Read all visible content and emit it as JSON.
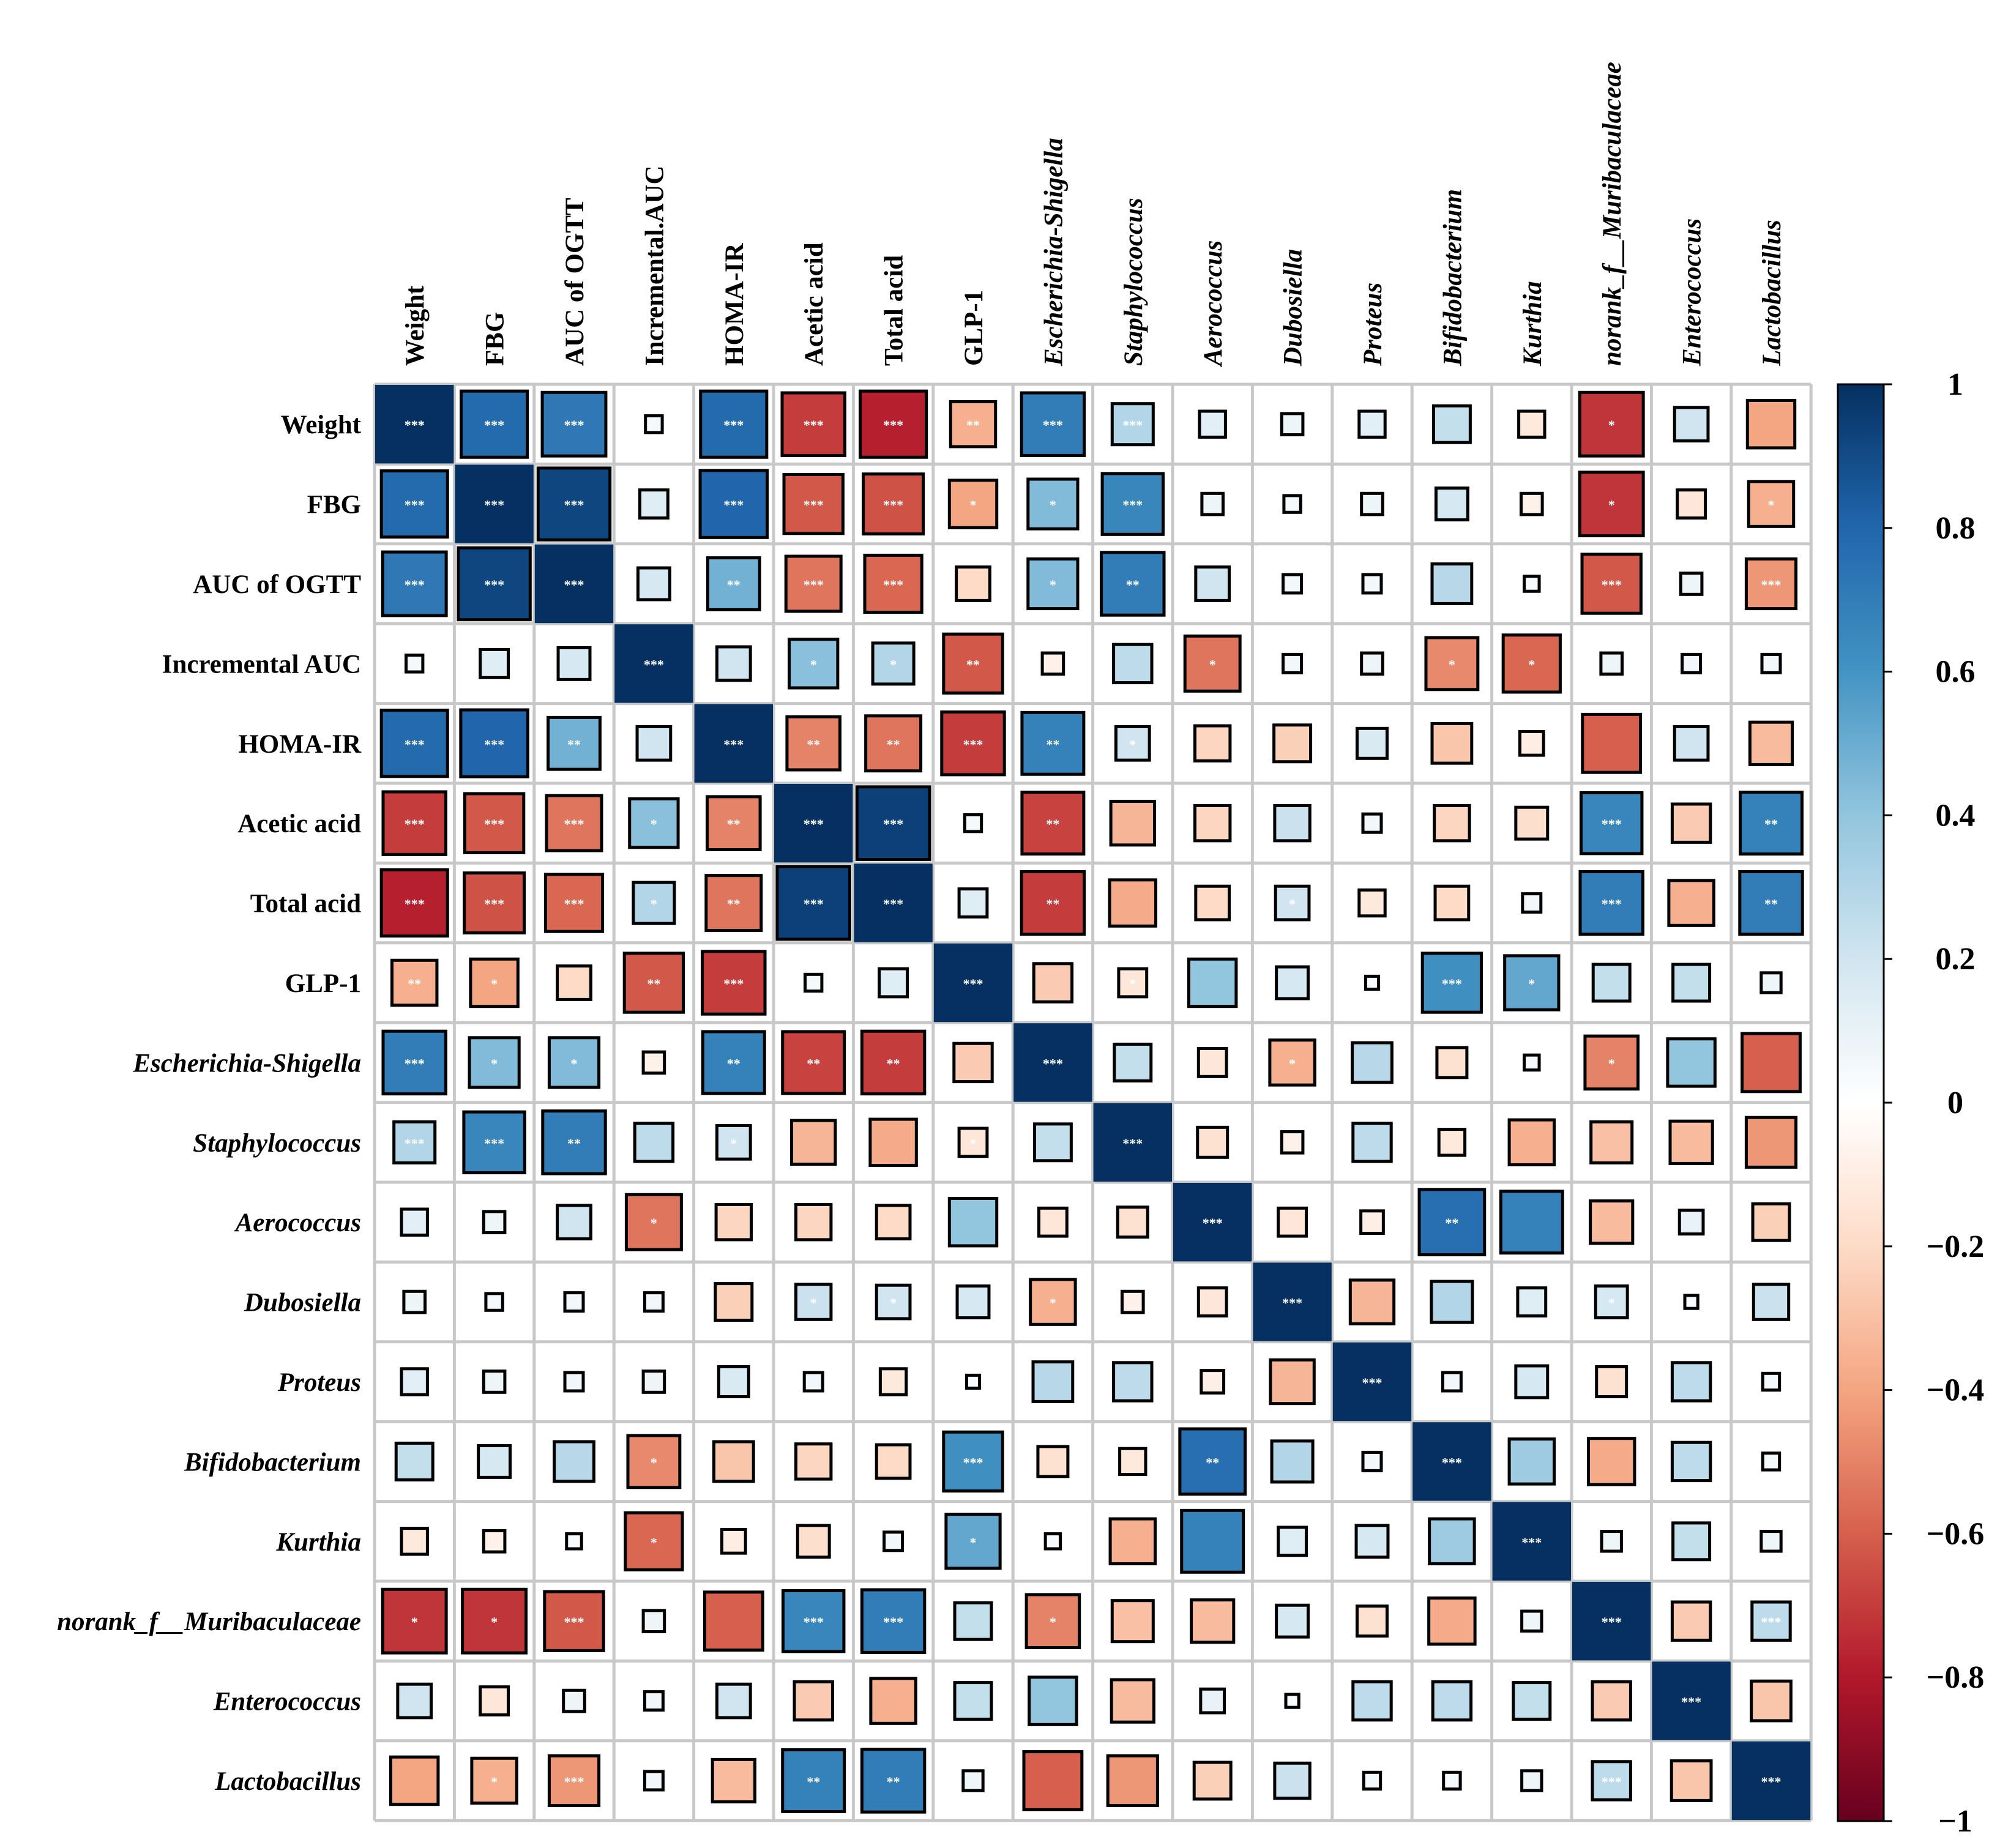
{
  "chart_data": {
    "type": "heatmap",
    "title": "",
    "variables": [
      {
        "label": "Weight",
        "italic": false
      },
      {
        "label": "FBG",
        "italic": false
      },
      {
        "label": "AUC of OGTT",
        "italic": false
      },
      {
        "label": "Incremental AUC",
        "italic": false
      },
      {
        "label": "HOMA-IR",
        "italic": false
      },
      {
        "label": "Acetic acid",
        "italic": false
      },
      {
        "label": "Total acid",
        "italic": false
      },
      {
        "label": "GLP-1",
        "italic": false
      },
      {
        "label": "Escherichia-Shigella",
        "italic": true
      },
      {
        "label": "Staphylococcus",
        "italic": true
      },
      {
        "label": "Aerococcus",
        "italic": true
      },
      {
        "label": "Dubosiella",
        "italic": true
      },
      {
        "label": "Proteus",
        "italic": true
      },
      {
        "label": "Bifidobacterium",
        "italic": true
      },
      {
        "label": "Kurthia",
        "italic": true
      },
      {
        "label": "norank_f__Muribaculaceae",
        "italic": true
      },
      {
        "label": "Enterococcus",
        "italic": true
      },
      {
        "label": "Lactobacillus",
        "italic": true
      }
    ],
    "column_labels": [
      "Weight",
      "FBG",
      "AUC of OGTT",
      "Incremental.AUC",
      "HOMA-IR",
      "Acetic acid",
      "Total acid",
      "GLP-1",
      "Escherichia-Shigella",
      "Staphylococcus",
      "Aerococcus",
      "Dubosiella",
      "Proteus",
      "Bifidobacterium",
      "Kurthia",
      "norank_f__Muribaculaceae",
      "Enterococcus",
      "Lactobacillus"
    ],
    "correlations": [
      [
        1.0,
        0.78,
        0.72,
        0.05,
        0.78,
        -0.7,
        -0.78,
        -0.36,
        0.7,
        0.3,
        0.12,
        0.08,
        0.12,
        0.24,
        -0.12,
        -0.72,
        0.2,
        -0.4
      ],
      [
        0.78,
        1.0,
        0.92,
        0.14,
        0.8,
        -0.62,
        -0.64,
        -0.4,
        0.44,
        0.66,
        0.08,
        0.05,
        0.08,
        0.18,
        -0.08,
        -0.72,
        -0.14,
        -0.36
      ],
      [
        0.72,
        0.92,
        1.0,
        0.18,
        0.48,
        -0.54,
        -0.58,
        -0.2,
        0.44,
        0.7,
        0.2,
        0.06,
        0.06,
        0.28,
        0.04,
        -0.62,
        0.08,
        -0.44
      ],
      [
        0.05,
        0.14,
        0.18,
        1.0,
        0.2,
        0.42,
        0.3,
        -0.62,
        -0.08,
        0.26,
        -0.54,
        0.06,
        0.08,
        -0.48,
        -0.58,
        0.08,
        0.06,
        0.06
      ],
      [
        0.78,
        0.8,
        0.48,
        0.2,
        1.0,
        -0.5,
        -0.54,
        -0.7,
        0.68,
        0.2,
        -0.22,
        -0.24,
        0.16,
        -0.28,
        -0.1,
        -0.6,
        0.2,
        -0.32
      ],
      [
        -0.7,
        -0.62,
        -0.54,
        0.42,
        -0.5,
        1.0,
        0.94,
        0.05,
        -0.68,
        -0.34,
        -0.22,
        0.22,
        0.06,
        -0.22,
        -0.18,
        0.66,
        -0.26,
        0.68
      ],
      [
        -0.78,
        -0.64,
        -0.58,
        0.3,
        -0.54,
        0.94,
        1.0,
        0.14,
        -0.7,
        -0.38,
        -0.2,
        0.2,
        -0.12,
        -0.2,
        0.06,
        0.7,
        -0.36,
        0.7
      ],
      [
        -0.36,
        -0.4,
        -0.2,
        -0.62,
        -0.7,
        0.05,
        0.14,
        1.0,
        -0.26,
        -0.14,
        0.4,
        0.18,
        0.03,
        0.62,
        0.52,
        0.24,
        0.24,
        0.07
      ],
      [
        0.7,
        0.44,
        0.44,
        -0.08,
        0.68,
        -0.68,
        -0.7,
        -0.26,
        1.0,
        0.24,
        -0.14,
        -0.36,
        0.28,
        -0.16,
        0.04,
        -0.5,
        0.4,
        -0.6
      ],
      [
        0.3,
        0.66,
        0.7,
        0.26,
        0.2,
        -0.34,
        -0.38,
        -0.14,
        0.24,
        1.0,
        -0.16,
        -0.08,
        0.26,
        -0.12,
        -0.36,
        -0.3,
        -0.32,
        -0.44
      ],
      [
        0.12,
        0.08,
        0.2,
        -0.54,
        -0.22,
        -0.22,
        -0.2,
        0.4,
        -0.14,
        -0.16,
        1.0,
        -0.14,
        -0.09,
        0.76,
        0.68,
        -0.32,
        0.1,
        -0.24
      ],
      [
        0.08,
        0.05,
        0.06,
        0.06,
        -0.24,
        0.22,
        0.2,
        0.18,
        -0.36,
        -0.08,
        -0.14,
        1.0,
        -0.34,
        0.3,
        0.14,
        0.18,
        0.03,
        0.22
      ],
      [
        0.12,
        0.08,
        0.06,
        0.08,
        0.16,
        0.06,
        -0.12,
        0.03,
        0.28,
        0.26,
        -0.09,
        -0.34,
        1.0,
        0.06,
        0.18,
        -0.16,
        0.26,
        0.05
      ],
      [
        0.24,
        0.18,
        0.28,
        -0.48,
        -0.28,
        -0.22,
        -0.2,
        0.62,
        -0.16,
        -0.12,
        0.76,
        0.3,
        0.06,
        1.0,
        0.36,
        -0.38,
        0.26,
        0.05
      ],
      [
        -0.12,
        -0.08,
        0.04,
        -0.58,
        -0.1,
        -0.18,
        0.06,
        0.52,
        0.04,
        -0.36,
        0.68,
        0.14,
        0.18,
        0.36,
        1.0,
        0.07,
        0.24,
        0.07
      ],
      [
        -0.72,
        -0.72,
        -0.62,
        0.08,
        -0.6,
        0.66,
        0.7,
        0.24,
        -0.5,
        -0.3,
        -0.32,
        0.18,
        -0.16,
        -0.38,
        0.07,
        1.0,
        -0.26,
        0.26
      ],
      [
        0.2,
        -0.14,
        0.08,
        0.06,
        0.2,
        -0.26,
        -0.36,
        0.24,
        0.4,
        -0.32,
        0.1,
        0.03,
        0.26,
        0.26,
        0.24,
        -0.26,
        1.0,
        -0.28
      ],
      [
        -0.4,
        -0.36,
        -0.44,
        0.06,
        -0.32,
        0.68,
        0.7,
        0.07,
        -0.6,
        -0.44,
        -0.24,
        0.22,
        0.05,
        0.05,
        0.07,
        0.26,
        -0.28,
        1.0
      ]
    ],
    "significance": [
      [
        "***",
        "***",
        "***",
        "",
        "***",
        "***",
        "***",
        "**",
        "***",
        "***",
        "",
        "",
        "",
        "",
        "",
        "*",
        "",
        ""
      ],
      [
        "***",
        "***",
        "***",
        "",
        "***",
        "***",
        "***",
        "*",
        "*",
        "***",
        "",
        "",
        "",
        "",
        "",
        "*",
        "",
        "*"
      ],
      [
        "***",
        "***",
        "***",
        "",
        "**",
        "***",
        "***",
        "",
        "*",
        "**",
        "",
        "",
        "",
        "",
        "",
        "***",
        "",
        "***"
      ],
      [
        "",
        "",
        "",
        "***",
        "",
        "*",
        "*",
        "**",
        "",
        "",
        "*",
        "",
        "",
        "*",
        "*",
        "",
        "",
        ""
      ],
      [
        "***",
        "***",
        "**",
        "",
        "***",
        "**",
        "**",
        "***",
        "**",
        "*",
        "",
        "",
        "",
        "",
        "",
        "",
        "",
        ""
      ],
      [
        "***",
        "***",
        "***",
        "*",
        "**",
        "***",
        "***",
        "",
        "**",
        "",
        "",
        "",
        "",
        "",
        "",
        "***",
        "",
        "**"
      ],
      [
        "***",
        "***",
        "***",
        "*",
        "**",
        "***",
        "***",
        "",
        "**",
        "",
        "",
        "*",
        "",
        "",
        "",
        "***",
        "",
        "**"
      ],
      [
        "**",
        "*",
        "",
        "**",
        "***",
        "",
        "",
        "***",
        "",
        "*",
        "",
        "",
        "",
        "***",
        "*",
        "",
        "",
        ""
      ],
      [
        "***",
        "*",
        "*",
        "",
        "**",
        "**",
        "**",
        "",
        "***",
        "",
        "",
        "*",
        "",
        "",
        "",
        "*",
        "",
        ""
      ],
      [
        "***",
        "***",
        "**",
        "",
        "*",
        "",
        "",
        "*",
        "",
        "***",
        "",
        "",
        "",
        "",
        "",
        "",
        "",
        ""
      ],
      [
        "",
        "",
        "",
        "*",
        "",
        "",
        "",
        "",
        "",
        "",
        "***",
        "",
        "",
        "**",
        "",
        "",
        "",
        ""
      ],
      [
        "",
        "",
        "",
        "",
        "",
        "*",
        "*",
        "",
        "*",
        "",
        "",
        "***",
        "",
        "",
        "",
        "*",
        "",
        ""
      ],
      [
        "",
        "",
        "",
        "",
        "",
        "",
        "",
        "",
        "",
        "",
        "",
        "",
        "***",
        "",
        "",
        "",
        "",
        ""
      ],
      [
        "",
        "",
        "",
        "*",
        "",
        "",
        "",
        "***",
        "",
        "",
        "**",
        "",
        "",
        "***",
        "",
        "",
        "",
        ""
      ],
      [
        "",
        "",
        "",
        "*",
        "",
        "",
        "",
        "*",
        "",
        "",
        "",
        "",
        "",
        "",
        "***",
        "",
        "",
        ""
      ],
      [
        "*",
        "*",
        "***",
        "",
        "",
        "***",
        "***",
        "",
        "*",
        "",
        "",
        "",
        "",
        "",
        "",
        "***",
        "",
        "***"
      ],
      [
        "",
        "",
        "",
        "",
        "",
        "",
        "",
        "",
        "",
        "",
        "",
        "",
        "",
        "",
        "",
        "",
        "***",
        ""
      ],
      [
        "",
        "*",
        "***",
        "",
        "",
        "**",
        "**",
        "",
        "",
        "",
        "",
        "",
        "",
        "",
        "",
        "***",
        "",
        "***"
      ]
    ],
    "colorbar": {
      "range": [
        -1,
        1
      ],
      "ticks": [
        "1",
        "0.8",
        "0.6",
        "0.4",
        "0.2",
        "0",
        "−0.2",
        "−0.4",
        "−0.6",
        "−0.8",
        "−1"
      ],
      "colors": {
        "neg1": "#67001F",
        "neg08": "#B2182B",
        "neg06": "#D6604D",
        "neg04": "#F4A582",
        "neg02": "#FDDBC7",
        "zero": "#FFFFFF",
        "pos02": "#D1E5F0",
        "pos04": "#92C5DE",
        "pos06": "#4393C3",
        "pos08": "#2166AC",
        "pos1": "#053061"
      }
    }
  }
}
